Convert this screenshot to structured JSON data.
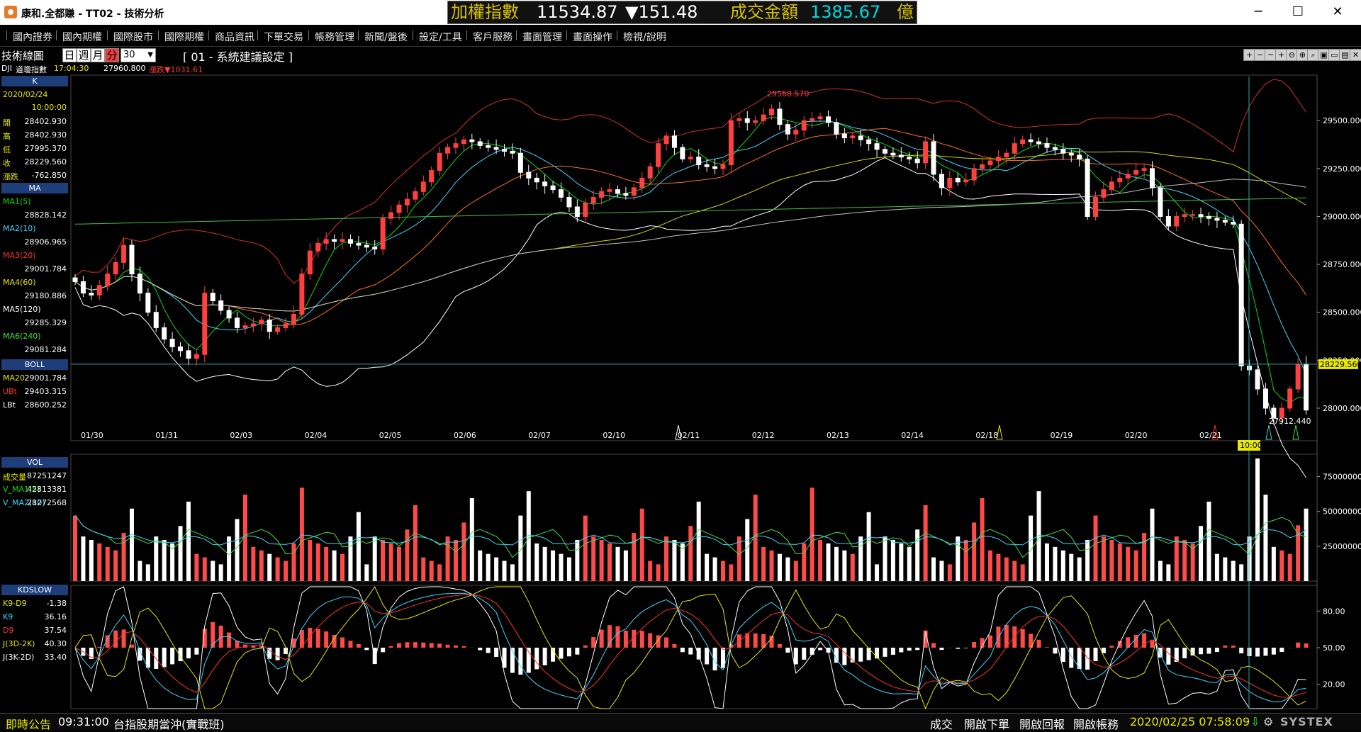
{
  "window": {
    "title": "康和.全都賺 - TT02 - 技術分析",
    "minimize": "─",
    "maximize": "☐",
    "close": "✕"
  },
  "ticker": {
    "index_name": "加權指數",
    "index_value": "11534.87",
    "change": "▼151.48",
    "turnover_label": "成交金額",
    "turnover_value": "1385.67",
    "unit": "億",
    "colors": {
      "name": "#d8c000",
      "value": "#ffffff",
      "change": "#ffffff",
      "turnover_value": "#00d8e0"
    }
  },
  "menu": [
    {
      "label": "國內證券"
    },
    {
      "label": "國內期權"
    },
    {
      "label": "國際股市"
    },
    {
      "label": "國際期權"
    },
    {
      "label": "商品資訊"
    },
    {
      "label": "下單交易"
    },
    {
      "label": "帳務管理"
    },
    {
      "label": "新聞/盤後"
    },
    {
      "label": "設定/工具"
    },
    {
      "label": "客戶服務"
    },
    {
      "label": "畫面管理"
    },
    {
      "label": "畫面操作"
    },
    {
      "label": "檢視/說明"
    }
  ],
  "toolbar": {
    "tech_label": "技術線圖",
    "periods": [
      "日",
      "週",
      "月",
      "分"
    ],
    "interval": "30",
    "dropdown_arrow": "▼",
    "system_setting": "[ 01 - 系統建議設定 ]",
    "icons": [
      {
        "name": "crosshair-icon",
        "glyph": "+"
      },
      {
        "name": "minus-icon",
        "glyph": "−"
      },
      {
        "name": "dash-icon",
        "glyph": "─"
      },
      {
        "name": "plus-icon",
        "glyph": "+"
      },
      {
        "name": "zoom-out-icon",
        "glyph": "⊖"
      },
      {
        "name": "zoom-in-icon",
        "glyph": "⊕"
      },
      {
        "name": "search-icon",
        "glyph": "⌕"
      },
      {
        "name": "save-icon",
        "glyph": "▣"
      },
      {
        "name": "window-icon",
        "glyph": "▭"
      },
      {
        "name": "stack-icon",
        "glyph": "▤"
      },
      {
        "name": "close-icon",
        "glyph": "✕"
      }
    ]
  },
  "infoline": {
    "symbol": "DJI",
    "name": "道瓊指數",
    "time": "17:04:30",
    "price": "27960.800",
    "change_label": "漲跌▼1031.61"
  },
  "side": {
    "k": {
      "header": "K",
      "date": "2020/02/24",
      "time": "10:00:00",
      "rows": [
        {
          "label": "開",
          "value": "28402.930"
        },
        {
          "label": "高",
          "value": "28402.930"
        },
        {
          "label": "低",
          "value": "27995.370"
        },
        {
          "label": "收",
          "value": "28229.560"
        },
        {
          "label": "漲跌",
          "value": "-762.850"
        }
      ]
    },
    "ma": {
      "header": "MA",
      "rows": [
        {
          "label": "MA1(5)",
          "value": "28828.142",
          "color": "#00e000"
        },
        {
          "label": "MA2(10)",
          "value": "28906.965",
          "color": "#3ad8ff"
        },
        {
          "label": "MA3(20)",
          "value": "29001.784",
          "color": "#ff3030"
        },
        {
          "label": "MA4(60)",
          "value": "29180.886",
          "color": "#e8e800"
        },
        {
          "label": "MA5(120)",
          "value": "29285.329",
          "color": "#ffffff"
        },
        {
          "label": "MA6(240)",
          "value": "29081.284",
          "color": "#40e040"
        }
      ]
    },
    "boll": {
      "header": "BOLL",
      "rows": [
        {
          "label": "MA20",
          "value": "29001.784",
          "color": "#e8e800"
        },
        {
          "label": "UBt",
          "value": "29403.315",
          "color": "#ff3030"
        },
        {
          "label": "LBt",
          "value": "28600.252",
          "color": "#ffffff"
        }
      ]
    },
    "vol": {
      "header": "VOL",
      "rows": [
        {
          "label": "成交量",
          "value": "87251247",
          "color": "#e8e800"
        },
        {
          "label": "V_MA1(5)",
          "value": "42813381",
          "color": "#00e000"
        },
        {
          "label": "V_MA2(10)",
          "value": "28272568",
          "color": "#3ad8ff"
        }
      ]
    },
    "kd": {
      "header": "KDSLOW",
      "rows": [
        {
          "label": "K9-D9",
          "value": "-1.38",
          "color": "#e8e800"
        },
        {
          "label": "K9",
          "value": "36.16",
          "color": "#3ad8ff"
        },
        {
          "label": "D9",
          "value": "37.54",
          "color": "#ff3030"
        },
        {
          "label": "J(3D-2K)",
          "value": "40.30",
          "color": "#e8e800"
        },
        {
          "label": "J(3K-2D)",
          "value": "33.40",
          "color": "#ffffff"
        }
      ]
    }
  },
  "chart_data": {
    "type": "candlestick",
    "price_axis": {
      "ticks": [
        "29500.000",
        "29250.000",
        "29000.000",
        "28750.000",
        "28500.000",
        "28250.000",
        "28000.000"
      ],
      "min": 27830,
      "max": 29730
    },
    "date_labels": [
      "01/30",
      "01/31",
      "02/03",
      "02/04",
      "02/05",
      "02/06",
      "02/07",
      "02/10",
      "02/11",
      "02/12",
      "02/13",
      "02/14",
      "02/18",
      "02/19",
      "02/20",
      "02/21"
    ],
    "cursor_time": "10:00",
    "last_price": "28229.560",
    "high_annotation": "29568.570",
    "low_annotation": "27912.440",
    "closes": [
      28660,
      28600,
      28590,
      28640,
      28700,
      28760,
      28850,
      28700,
      28600,
      28500,
      28420,
      28360,
      28320,
      28300,
      28260,
      28280,
      28600,
      28560,
      28510,
      28470,
      28420,
      28430,
      28440,
      28460,
      28400,
      28420,
      28440,
      28490,
      28700,
      28820,
      28860,
      28880,
      28870,
      28880,
      28860,
      28850,
      28840,
      28830,
      28990,
      29020,
      29060,
      29090,
      29130,
      29180,
      29240,
      29330,
      29360,
      29380,
      29400,
      29390,
      29370,
      29360,
      29350,
      29340,
      29330,
      29230,
      29200,
      29180,
      29160,
      29140,
      29100,
      29050,
      29000,
      29070,
      29100,
      29130,
      29140,
      29120,
      29110,
      29150,
      29200,
      29260,
      29380,
      29420,
      29360,
      29300,
      29310,
      29270,
      29260,
      29250,
      29270,
      29500,
      29510,
      29490,
      29500,
      29530,
      29560,
      29480,
      29430,
      29450,
      29500,
      29510,
      29520,
      29490,
      29430,
      29410,
      29420,
      29400,
      29380,
      29350,
      29330,
      29320,
      29310,
      29300,
      29280,
      29390,
      29220,
      29150,
      29200,
      29180,
      29190,
      29250,
      29270,
      29290,
      29310,
      29330,
      29380,
      29400,
      29390,
      29380,
      29360,
      29350,
      29330,
      29320,
      29300,
      29000,
      29100,
      29140,
      29180,
      29200,
      29220,
      29240,
      29250,
      29150,
      29000,
      28950,
      29000,
      29010,
      29010,
      29000,
      28990,
      28980,
      28970,
      28960,
      28220,
      28200,
      28100,
      28000,
      27950,
      28000,
      28100,
      28230,
      27990
    ]
  },
  "volume_axis": {
    "ticks": [
      "75000000",
      "50000000",
      "25000000"
    ]
  },
  "kd_axis": {
    "ticks": [
      "80.00",
      "50.00",
      "20.00"
    ]
  },
  "status": {
    "label": "即時公告",
    "time": "09:31:00",
    "message": "台指股期當沖(實戰班)",
    "buttons": [
      "成交",
      "開啟下單",
      "開啟回報",
      "開啟帳務"
    ],
    "datetime": "2020/02/25 07:58:09",
    "brand": "SYSTEX"
  }
}
